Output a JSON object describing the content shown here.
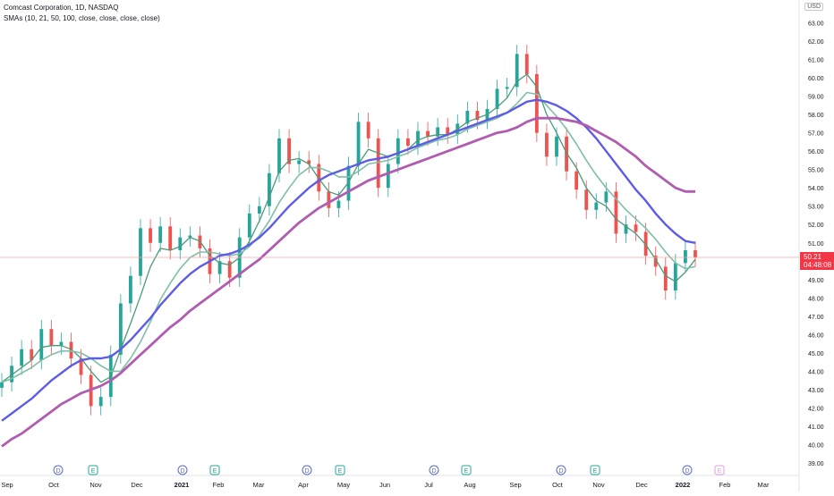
{
  "header": {
    "title": "Comcast Corporation, 1D, NASDAQ",
    "indicator": "SMAs (10, 21, 50, 100, close, close, close, close)",
    "currency": "USD"
  },
  "price_tag": {
    "price": "50.21",
    "countdown": "04:48:08"
  },
  "colors": {
    "up": "#26a69a",
    "down": "#ef5350",
    "sma10": "#4a9a7a",
    "sma21": "#7fbfa8",
    "sma50": "#5c5ce6",
    "sma100": "#b05cb0",
    "price_line": "#f7a6a6"
  },
  "chart_data": {
    "type": "line",
    "title": "Comcast Corporation, 1D, NASDAQ",
    "ylim": [
      39,
      64
    ],
    "y_ticks": [
      "39.00",
      "40.00",
      "41.00",
      "42.00",
      "43.00",
      "44.00",
      "45.00",
      "46.00",
      "47.00",
      "48.00",
      "49.00",
      "50.00",
      "51.00",
      "52.00",
      "53.00",
      "54.00",
      "55.00",
      "56.00",
      "57.00",
      "58.00",
      "59.00",
      "60.00",
      "61.00",
      "62.00",
      "63.00"
    ],
    "top_tick_partial": "64",
    "x_ticks": [
      "Sep",
      "Oct",
      "Nov",
      "Dec",
      "2021",
      "Feb",
      "Mar",
      "Apr",
      "May",
      "Jun",
      "Jul",
      "Aug",
      "Sep",
      "Oct",
      "Nov",
      "Dec",
      "2022",
      "Feb",
      "Mar"
    ],
    "close": [
      43.4,
      44.3,
      45.2,
      44.6,
      46.3,
      45.4,
      45.6,
      44.7,
      43.8,
      42.1,
      42.6,
      44.9,
      47.7,
      49.2,
      51.8,
      51.0,
      51.9,
      50.6,
      51.3,
      51.4,
      50.7,
      49.3,
      50.0,
      49.1,
      51.3,
      52.6,
      53.0,
      54.8,
      56.7,
      55.3,
      55.5,
      55.3,
      53.8,
      52.9,
      53.3,
      55.2,
      57.6,
      56.7,
      54.0,
      55.3,
      56.7,
      56.3,
      57.1,
      56.8,
      57.3,
      56.9,
      57.5,
      58.2,
      57.7,
      58.3,
      59.4,
      59.5,
      61.3,
      60.2,
      57.0,
      55.7,
      56.8,
      54.9,
      53.9,
      52.8,
      53.2,
      53.8,
      51.5,
      52.0,
      51.6,
      50.3,
      49.7,
      48.4,
      49.9,
      50.6,
      50.2
    ],
    "series": [
      {
        "name": "SMA 10",
        "values": [
          43.4,
          43.8,
          44.2,
          44.6,
          45.3,
          45.4,
          45.4,
          45.2,
          44.7,
          44.0,
          43.4,
          43.7,
          45.2,
          46.6,
          48.1,
          49.7,
          50.7,
          50.6,
          50.8,
          51.3,
          51.1,
          50.3,
          49.9,
          49.8,
          50.2,
          51.1,
          52.2,
          53.5,
          54.9,
          55.5,
          55.6,
          55.3,
          54.5,
          53.8,
          53.6,
          54.3,
          55.3,
          56.1,
          55.9,
          55.7,
          55.9,
          56.1,
          56.6,
          56.8,
          56.9,
          56.9,
          57.2,
          57.6,
          57.8,
          58.0,
          58.4,
          58.9,
          59.8,
          60.2,
          59.5,
          58.0,
          57.0,
          55.9,
          55.1,
          54.0,
          53.3,
          53.0,
          52.3,
          51.9,
          51.5,
          50.9,
          50.1,
          49.2,
          48.9,
          49.4,
          50.1
        ]
      },
      {
        "name": "SMA 21",
        "values": [
          43.4,
          43.6,
          43.9,
          44.2,
          44.6,
          44.9,
          45.1,
          45.1,
          45.0,
          44.7,
          44.3,
          44.0,
          44.0,
          44.7,
          45.6,
          46.7,
          47.9,
          48.8,
          49.6,
          50.2,
          50.5,
          50.5,
          50.4,
          50.3,
          50.4,
          50.8,
          51.4,
          52.2,
          53.2,
          54.0,
          54.7,
          55.1,
          55.1,
          54.9,
          54.6,
          54.6,
          54.9,
          55.3,
          55.4,
          55.5,
          55.7,
          55.9,
          56.2,
          56.4,
          56.6,
          56.7,
          56.9,
          57.2,
          57.4,
          57.6,
          57.8,
          58.1,
          58.6,
          59.2,
          59.1,
          58.5,
          57.9,
          57.2,
          56.4,
          55.5,
          54.7,
          54.0,
          53.4,
          52.8,
          52.3,
          51.8,
          51.2,
          50.5,
          49.9,
          49.6,
          49.7
        ]
      },
      {
        "name": "SMA 50",
        "values": [
          41.3,
          41.7,
          42.1,
          42.5,
          43.0,
          43.5,
          43.9,
          44.3,
          44.6,
          44.7,
          44.7,
          44.8,
          45.2,
          45.7,
          46.3,
          46.9,
          47.6,
          48.2,
          48.8,
          49.3,
          49.7,
          50.0,
          50.3,
          50.4,
          50.6,
          50.9,
          51.3,
          51.8,
          52.4,
          53.0,
          53.5,
          54.0,
          54.4,
          54.7,
          54.9,
          55.1,
          55.3,
          55.5,
          55.6,
          55.7,
          55.9,
          56.1,
          56.3,
          56.5,
          56.7,
          56.9,
          57.1,
          57.3,
          57.5,
          57.7,
          57.9,
          58.1,
          58.4,
          58.7,
          58.8,
          58.7,
          58.5,
          58.2,
          57.8,
          57.3,
          56.7,
          56.0,
          55.3,
          54.6,
          53.9,
          53.3,
          52.6,
          52.0,
          51.5,
          51.1,
          51.0
        ]
      },
      {
        "name": "SMA 100",
        "values": [
          39.9,
          40.3,
          40.6,
          41.0,
          41.4,
          41.8,
          42.2,
          42.5,
          42.8,
          43.0,
          43.2,
          43.5,
          43.9,
          44.4,
          44.9,
          45.4,
          45.9,
          46.4,
          46.8,
          47.3,
          47.7,
          48.1,
          48.5,
          48.9,
          49.3,
          49.7,
          50.1,
          50.6,
          51.1,
          51.6,
          52.1,
          52.5,
          52.9,
          53.2,
          53.5,
          53.8,
          54.1,
          54.4,
          54.6,
          54.8,
          55.0,
          55.2,
          55.4,
          55.6,
          55.8,
          56.0,
          56.2,
          56.4,
          56.6,
          56.8,
          57.0,
          57.1,
          57.3,
          57.6,
          57.8,
          57.8,
          57.8,
          57.7,
          57.6,
          57.4,
          57.1,
          56.8,
          56.5,
          56.1,
          55.7,
          55.2,
          54.8,
          54.4,
          54.0,
          53.8,
          53.8
        ]
      }
    ],
    "events": [
      "D",
      "E",
      "D",
      "E",
      "D",
      "E",
      "D",
      "E",
      "D",
      "E",
      "D",
      "E"
    ],
    "grid": true,
    "last_price": 50.21
  }
}
